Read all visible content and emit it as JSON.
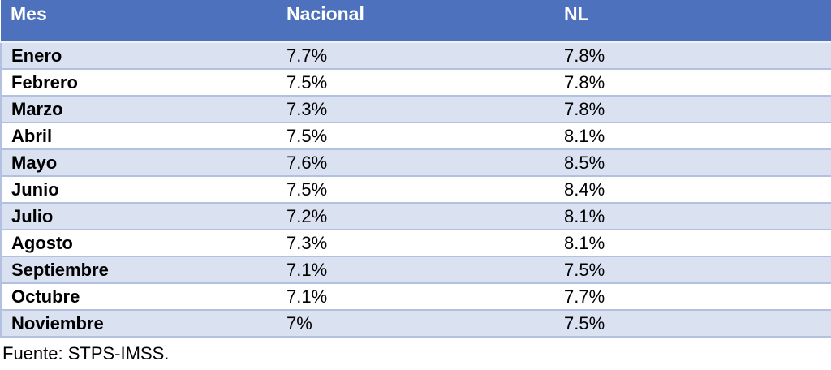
{
  "table": {
    "columns": [
      "Mes",
      "Nacional",
      "NL"
    ],
    "rows": [
      {
        "mes": "Enero",
        "nacional": "7.7%",
        "nl": "7.8%"
      },
      {
        "mes": "Febrero",
        "nacional": "7.5%",
        "nl": "7.8%"
      },
      {
        "mes": "Marzo",
        "nacional": "7.3%",
        "nl": "7.8%"
      },
      {
        "mes": "Abril",
        "nacional": "7.5%",
        "nl": "8.1%"
      },
      {
        "mes": "Mayo",
        "nacional": "7.6%",
        "nl": "8.5%"
      },
      {
        "mes": "Junio",
        "nacional": "7.5%",
        "nl": "8.4%"
      },
      {
        "mes": "Julio",
        "nacional": "7.2%",
        "nl": "8.1%"
      },
      {
        "mes": "Agosto",
        "nacional": "7.3%",
        "nl": "8.1%"
      },
      {
        "mes": "Septiembre",
        "nacional": "7.1%",
        "nl": "7.5%"
      },
      {
        "mes": "Octubre",
        "nacional": "7.1%",
        "nl": "7.7%"
      },
      {
        "mes": "Noviembre",
        "nacional": "7%",
        "nl": "7.5%"
      }
    ]
  },
  "footer": {
    "source": "Fuente: STPS-IMSS."
  },
  "colors": {
    "header_bg": "#4E71BD",
    "header_text": "#FFFFFF",
    "row_alt_bg": "#DAE1F1",
    "row_bg": "#FFFFFF",
    "row_border": "#B3C1E1",
    "body_text": "#000000"
  },
  "chart_data": {
    "type": "table",
    "title": "",
    "columns": [
      "Mes",
      "Nacional",
      "NL"
    ],
    "categories": [
      "Enero",
      "Febrero",
      "Marzo",
      "Abril",
      "Mayo",
      "Junio",
      "Julio",
      "Agosto",
      "Septiembre",
      "Octubre",
      "Noviembre"
    ],
    "series": [
      {
        "name": "Nacional",
        "values": [
          7.7,
          7.5,
          7.3,
          7.5,
          7.6,
          7.5,
          7.2,
          7.3,
          7.1,
          7.1,
          7.0
        ]
      },
      {
        "name": "NL",
        "values": [
          7.8,
          7.8,
          7.8,
          8.1,
          8.5,
          8.4,
          8.1,
          8.1,
          7.5,
          7.7,
          7.5
        ]
      }
    ],
    "value_unit": "%",
    "annotations": [
      "Fuente: STPS-IMSS."
    ],
    "layout": {
      "header_position": "top",
      "striped_rows": true,
      "grid": "horizontal-only"
    }
  }
}
